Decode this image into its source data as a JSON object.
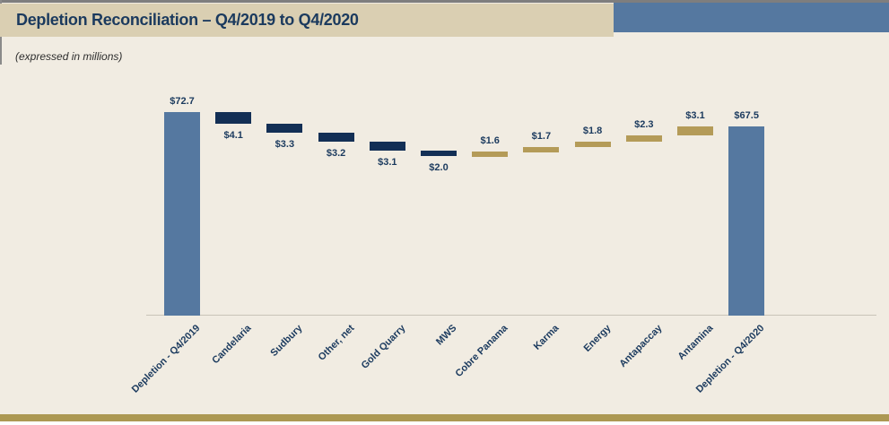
{
  "page": {
    "title": "Depletion Reconciliation – Q4/2019 to Q4/2020",
    "subtitle": "(expressed in millions)"
  },
  "colors": {
    "background": "#f1ece2",
    "header_band": "#dacfb2",
    "header_accent": "#5578a0",
    "title_text": "#1b3a5e",
    "total_bar": "#5578a0",
    "decrease_bar": "#132f55",
    "increase_bar": "#b49b58",
    "footer_band": "#ac9852",
    "axis_line": "#c9c4b8"
  },
  "chart_data": {
    "type": "waterfall",
    "title": "Depletion Reconciliation – Q4/2019 to Q4/2020",
    "subtitle": "(expressed in millions)",
    "ylim": [
      0,
      80
    ],
    "grid": false,
    "legend": "none",
    "categories": [
      "Depletion - Q4/2019",
      "Candelaria",
      "Sudbury",
      "Other, net",
      "Gold Quarry",
      "MWS",
      "Cobre Panama",
      "Karma",
      "Energy",
      "Antapaccay",
      "Antamina",
      "Depletion - Q4/2020"
    ],
    "items": [
      {
        "label": "Depletion - Q4/2019",
        "value": 72.7,
        "kind": "total",
        "display": "$72.7"
      },
      {
        "label": "Candelaria",
        "value": -4.1,
        "kind": "decrease",
        "display": "$4.1"
      },
      {
        "label": "Sudbury",
        "value": -3.3,
        "kind": "decrease",
        "display": "$3.3"
      },
      {
        "label": "Other, net",
        "value": -3.2,
        "kind": "decrease",
        "display": "$3.2"
      },
      {
        "label": "Gold Quarry",
        "value": -3.1,
        "kind": "decrease",
        "display": "$3.1"
      },
      {
        "label": "MWS",
        "value": -2.0,
        "kind": "decrease",
        "display": "$2.0"
      },
      {
        "label": "Cobre Panama",
        "value": 1.6,
        "kind": "increase",
        "display": "$1.6"
      },
      {
        "label": "Karma",
        "value": 1.7,
        "kind": "increase",
        "display": "$1.7"
      },
      {
        "label": "Energy",
        "value": 1.8,
        "kind": "increase",
        "display": "$1.8"
      },
      {
        "label": "Antapaccay",
        "value": 2.3,
        "kind": "increase",
        "display": "$2.3"
      },
      {
        "label": "Antamina",
        "value": 3.1,
        "kind": "increase",
        "display": "$3.1"
      },
      {
        "label": "Depletion - Q4/2020",
        "value": 67.5,
        "kind": "total",
        "display": "$67.5"
      }
    ]
  }
}
